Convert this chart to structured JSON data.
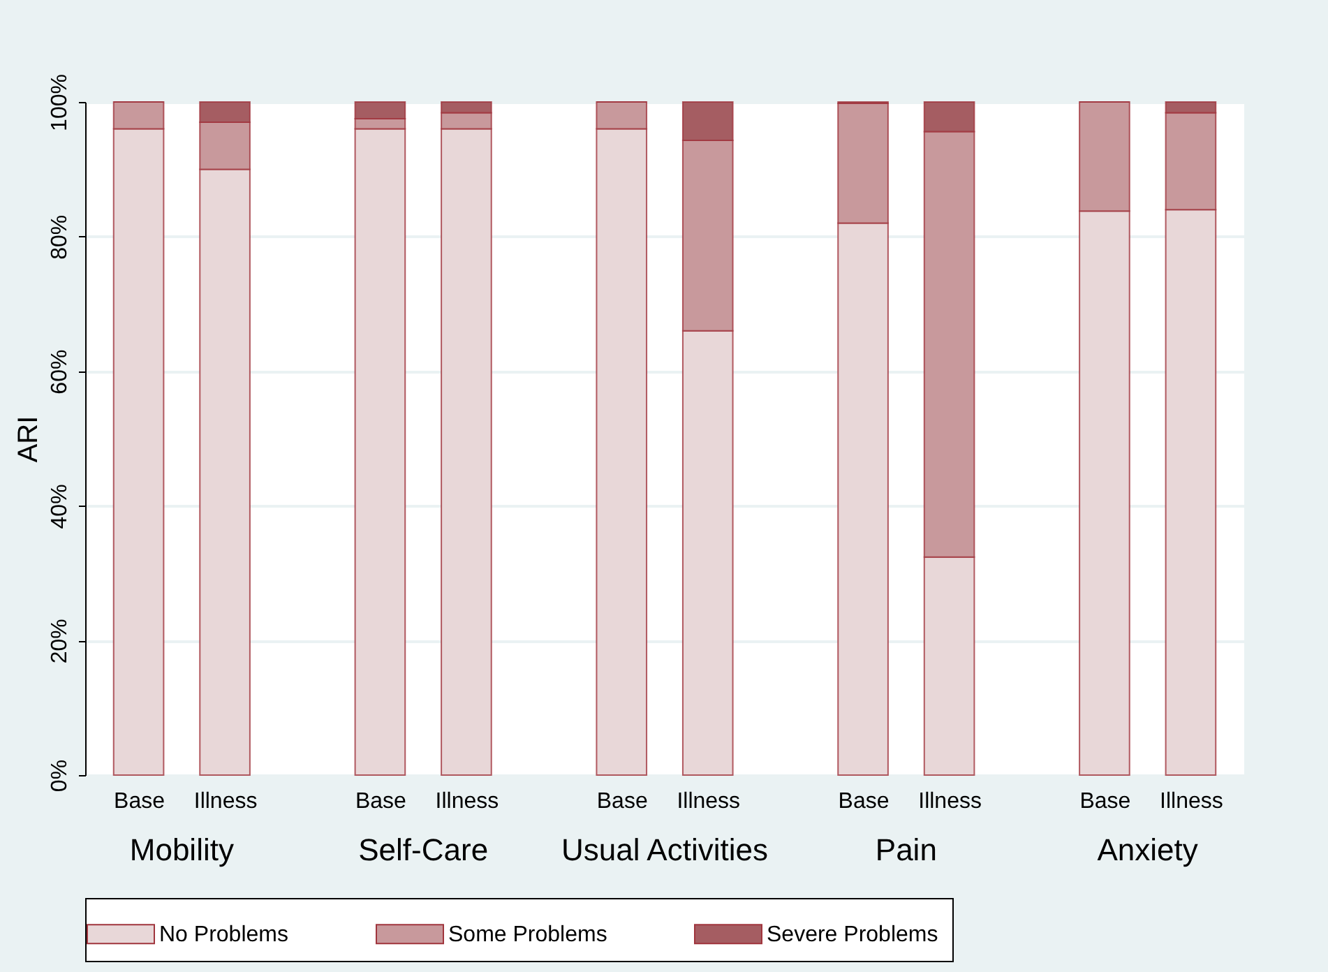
{
  "chart_data": {
    "type": "bar",
    "stacked": true,
    "ylabel": "ARI",
    "categories": [
      "Base",
      "Illness",
      "Base",
      "Illness",
      "Base",
      "Illness",
      "Base",
      "Illness",
      "Base",
      "Illness"
    ],
    "annotations": [
      "Mobility",
      "Self-Care",
      "Usual Activities",
      "Pain",
      "Anxiety"
    ],
    "series": [
      {
        "name": "No Problems",
        "color": "#e8d7d8",
        "values": [
          96,
          90,
          96,
          96,
          96,
          66,
          82,
          32.4,
          83.8,
          84
        ]
      },
      {
        "name": "Some Problems",
        "color": "#c8999c",
        "values": [
          4,
          7,
          1.5,
          2.4,
          4,
          28.3,
          17.8,
          63.2,
          16.2,
          14.4
        ]
      },
      {
        "name": "Severe Problems",
        "color": "#a55d62",
        "values": [
          0,
          3,
          2.5,
          1.6,
          0,
          5.7,
          0.2,
          4.4,
          0,
          1.6
        ]
      }
    ],
    "ylim": [
      0,
      100
    ],
    "yticks": [
      {
        "value": 0,
        "label": "0%"
      },
      {
        "value": 20,
        "label": "20%"
      },
      {
        "value": 40,
        "label": "40%"
      },
      {
        "value": 60,
        "label": "60%"
      },
      {
        "value": 80,
        "label": "80%"
      },
      {
        "value": 100,
        "label": "100%"
      }
    ],
    "grid": "y",
    "legend": "bottom"
  }
}
